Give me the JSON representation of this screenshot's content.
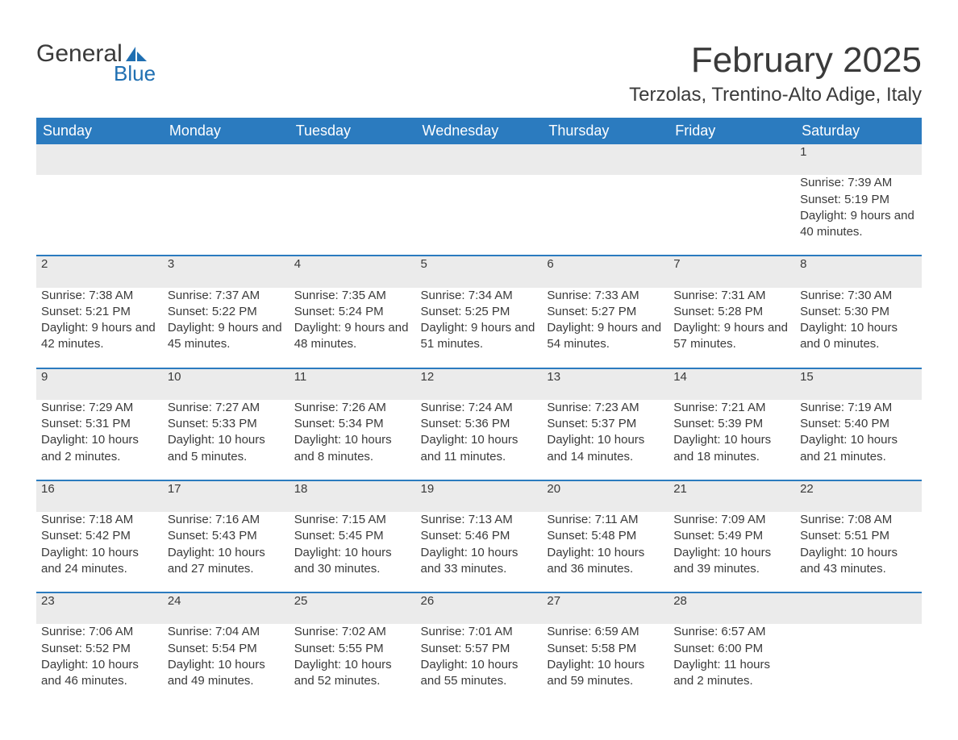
{
  "logo": {
    "word1": "General",
    "word2": "Blue",
    "icon_color": "#1f6fb2"
  },
  "title": "February 2025",
  "location": "Terzolas, Trentino-Alto Adige, Italy",
  "header_bg": "#2b7bbf",
  "header_fg": "#ffffff",
  "daynum_bg": "#ebebeb",
  "border_color": "#2b7bbf",
  "columns": [
    "Sunday",
    "Monday",
    "Tuesday",
    "Wednesday",
    "Thursday",
    "Friday",
    "Saturday"
  ],
  "weeks": [
    [
      null,
      null,
      null,
      null,
      null,
      null,
      {
        "n": "1",
        "sunrise": "Sunrise: 7:39 AM",
        "sunset": "Sunset: 5:19 PM",
        "daylight": "Daylight: 9 hours and 40 minutes."
      }
    ],
    [
      {
        "n": "2",
        "sunrise": "Sunrise: 7:38 AM",
        "sunset": "Sunset: 5:21 PM",
        "daylight": "Daylight: 9 hours and 42 minutes."
      },
      {
        "n": "3",
        "sunrise": "Sunrise: 7:37 AM",
        "sunset": "Sunset: 5:22 PM",
        "daylight": "Daylight: 9 hours and 45 minutes."
      },
      {
        "n": "4",
        "sunrise": "Sunrise: 7:35 AM",
        "sunset": "Sunset: 5:24 PM",
        "daylight": "Daylight: 9 hours and 48 minutes."
      },
      {
        "n": "5",
        "sunrise": "Sunrise: 7:34 AM",
        "sunset": "Sunset: 5:25 PM",
        "daylight": "Daylight: 9 hours and 51 minutes."
      },
      {
        "n": "6",
        "sunrise": "Sunrise: 7:33 AM",
        "sunset": "Sunset: 5:27 PM",
        "daylight": "Daylight: 9 hours and 54 minutes."
      },
      {
        "n": "7",
        "sunrise": "Sunrise: 7:31 AM",
        "sunset": "Sunset: 5:28 PM",
        "daylight": "Daylight: 9 hours and 57 minutes."
      },
      {
        "n": "8",
        "sunrise": "Sunrise: 7:30 AM",
        "sunset": "Sunset: 5:30 PM",
        "daylight": "Daylight: 10 hours and 0 minutes."
      }
    ],
    [
      {
        "n": "9",
        "sunrise": "Sunrise: 7:29 AM",
        "sunset": "Sunset: 5:31 PM",
        "daylight": "Daylight: 10 hours and 2 minutes."
      },
      {
        "n": "10",
        "sunrise": "Sunrise: 7:27 AM",
        "sunset": "Sunset: 5:33 PM",
        "daylight": "Daylight: 10 hours and 5 minutes."
      },
      {
        "n": "11",
        "sunrise": "Sunrise: 7:26 AM",
        "sunset": "Sunset: 5:34 PM",
        "daylight": "Daylight: 10 hours and 8 minutes."
      },
      {
        "n": "12",
        "sunrise": "Sunrise: 7:24 AM",
        "sunset": "Sunset: 5:36 PM",
        "daylight": "Daylight: 10 hours and 11 minutes."
      },
      {
        "n": "13",
        "sunrise": "Sunrise: 7:23 AM",
        "sunset": "Sunset: 5:37 PM",
        "daylight": "Daylight: 10 hours and 14 minutes."
      },
      {
        "n": "14",
        "sunrise": "Sunrise: 7:21 AM",
        "sunset": "Sunset: 5:39 PM",
        "daylight": "Daylight: 10 hours and 18 minutes."
      },
      {
        "n": "15",
        "sunrise": "Sunrise: 7:19 AM",
        "sunset": "Sunset: 5:40 PM",
        "daylight": "Daylight: 10 hours and 21 minutes."
      }
    ],
    [
      {
        "n": "16",
        "sunrise": "Sunrise: 7:18 AM",
        "sunset": "Sunset: 5:42 PM",
        "daylight": "Daylight: 10 hours and 24 minutes."
      },
      {
        "n": "17",
        "sunrise": "Sunrise: 7:16 AM",
        "sunset": "Sunset: 5:43 PM",
        "daylight": "Daylight: 10 hours and 27 minutes."
      },
      {
        "n": "18",
        "sunrise": "Sunrise: 7:15 AM",
        "sunset": "Sunset: 5:45 PM",
        "daylight": "Daylight: 10 hours and 30 minutes."
      },
      {
        "n": "19",
        "sunrise": "Sunrise: 7:13 AM",
        "sunset": "Sunset: 5:46 PM",
        "daylight": "Daylight: 10 hours and 33 minutes."
      },
      {
        "n": "20",
        "sunrise": "Sunrise: 7:11 AM",
        "sunset": "Sunset: 5:48 PM",
        "daylight": "Daylight: 10 hours and 36 minutes."
      },
      {
        "n": "21",
        "sunrise": "Sunrise: 7:09 AM",
        "sunset": "Sunset: 5:49 PM",
        "daylight": "Daylight: 10 hours and 39 minutes."
      },
      {
        "n": "22",
        "sunrise": "Sunrise: 7:08 AM",
        "sunset": "Sunset: 5:51 PM",
        "daylight": "Daylight: 10 hours and 43 minutes."
      }
    ],
    [
      {
        "n": "23",
        "sunrise": "Sunrise: 7:06 AM",
        "sunset": "Sunset: 5:52 PM",
        "daylight": "Daylight: 10 hours and 46 minutes."
      },
      {
        "n": "24",
        "sunrise": "Sunrise: 7:04 AM",
        "sunset": "Sunset: 5:54 PM",
        "daylight": "Daylight: 10 hours and 49 minutes."
      },
      {
        "n": "25",
        "sunrise": "Sunrise: 7:02 AM",
        "sunset": "Sunset: 5:55 PM",
        "daylight": "Daylight: 10 hours and 52 minutes."
      },
      {
        "n": "26",
        "sunrise": "Sunrise: 7:01 AM",
        "sunset": "Sunset: 5:57 PM",
        "daylight": "Daylight: 10 hours and 55 minutes."
      },
      {
        "n": "27",
        "sunrise": "Sunrise: 6:59 AM",
        "sunset": "Sunset: 5:58 PM",
        "daylight": "Daylight: 10 hours and 59 minutes."
      },
      {
        "n": "28",
        "sunrise": "Sunrise: 6:57 AM",
        "sunset": "Sunset: 6:00 PM",
        "daylight": "Daylight: 11 hours and 2 minutes."
      },
      null
    ]
  ]
}
